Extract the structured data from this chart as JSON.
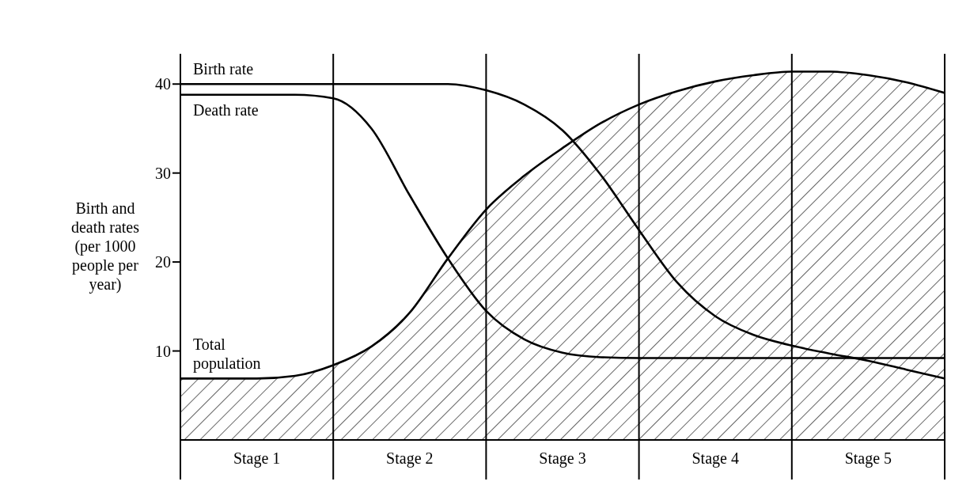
{
  "chart_data": {
    "type": "line",
    "ylabel": "Birth and death rates (per 1000 people per year)",
    "categories": [
      null,
      null,
      "Stage 1",
      null,
      null,
      null,
      "Stage 2",
      null,
      null,
      null,
      "Stage 3",
      null,
      null,
      null,
      "Stage 4",
      null,
      null,
      null,
      "Stage 5",
      null,
      null
    ],
    "ylim": [
      0,
      43.4
    ],
    "yticks": [
      10,
      20,
      30,
      40
    ],
    "grid": "x",
    "legend": false,
    "marker": "none",
    "line_style": "solid",
    "series": [
      {
        "name": "Total population",
        "type": "area",
        "color": "#000000",
        "values": [
          6.9,
          6.9,
          6.9,
          7.2,
          8.4,
          10.5,
          14.3,
          20.4,
          25.9,
          29.7,
          32.8,
          35.6,
          37.7,
          39.2,
          40.3,
          41.0,
          41.4,
          41.4,
          41.0,
          40.2,
          39.0
        ]
      },
      {
        "name": "Birth rate",
        "type": "line",
        "color": "#000000",
        "values": [
          40,
          40,
          40,
          40,
          40,
          40,
          40,
          40,
          39.3,
          37.7,
          34.8,
          29.8,
          23.6,
          17.7,
          13.9,
          11.8,
          10.6,
          9.7,
          8.9,
          7.9,
          6.9
        ]
      },
      {
        "name": "Death rate",
        "type": "line",
        "color": "#000000",
        "values": [
          38.8,
          38.8,
          38.8,
          38.8,
          38.4,
          35.0,
          27.5,
          20.4,
          14.5,
          11.3,
          9.8,
          9.3,
          9.2,
          9.2,
          9.2,
          9.2,
          9.2,
          9.2,
          9.2,
          9.2,
          9.2
        ]
      }
    ]
  }
}
